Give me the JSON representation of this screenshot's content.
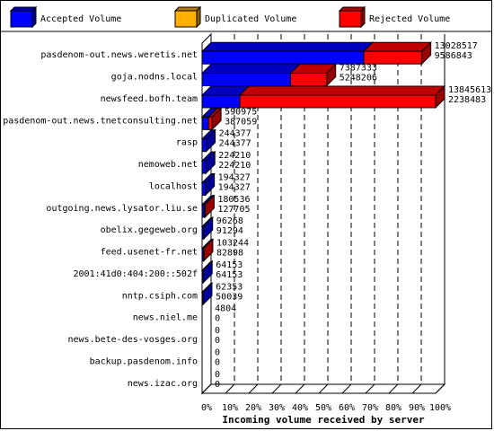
{
  "chart_data": {
    "type": "bar",
    "orientation": "horizontal",
    "stacked": true,
    "style": "3d",
    "title": "",
    "xlabel": "Incoming volume received by server",
    "ylabel": "",
    "xlim": [
      0,
      100
    ],
    "x_unit": "%",
    "x_ticks": [
      "0%",
      "10%",
      "20%",
      "30%",
      "40%",
      "50%",
      "60%",
      "70%",
      "80%",
      "90%",
      "100%"
    ],
    "grid": "vertical-dashed",
    "legend_position": "top",
    "legend": [
      {
        "name": "Accepted Volume",
        "color": "#0000ff"
      },
      {
        "name": "Duplicated Volume",
        "color": "#ffb000"
      },
      {
        "name": "Rejected Volume",
        "color": "#ff0000"
      }
    ],
    "categories": [
      "pasdenom-out.news.weretis.net",
      "goja.nodns.local",
      "newsfeed.bofh.team",
      "pasdenom-out.news.tnetconsulting.net",
      "rasp",
      "nemoweb.net",
      "localhost",
      "outgoing.news.lysator.liu.se",
      "obelix.gegeweb.org",
      "feed.usenet-fr.net",
      "2001:41d0:404:200::502f",
      "nntp.csiph.com",
      "news.niel.me",
      "news.bete-des-vosges.org",
      "backup.pasdenom.info",
      "news.izac.org"
    ],
    "total_volume": [
      13028517,
      7387333,
      13845613,
      590975,
      244377,
      224210,
      194327,
      180536,
      96268,
      103244,
      64153,
      62353,
      4804,
      0,
      0,
      0
    ],
    "accepted_volume": [
      9586843,
      5248206,
      2238483,
      387059,
      244377,
      224210,
      194327,
      127705,
      91294,
      82898,
      64153,
      50039,
      0,
      0,
      0,
      0
    ],
    "total_labels": [
      "13028517",
      "7387333",
      "13845613",
      "590975",
      "244377",
      "224210",
      "194327",
      "180536",
      "96268",
      "103244",
      "64153",
      "62353",
      "4804",
      "0",
      "0",
      "0"
    ],
    "accepted_labels": [
      "9586843",
      "5248206",
      "2238483",
      "387059",
      "244377",
      "224210",
      "194327",
      "127705",
      "91294",
      "82898",
      "64153",
      "50039",
      "0",
      "0",
      "0",
      "0"
    ]
  }
}
